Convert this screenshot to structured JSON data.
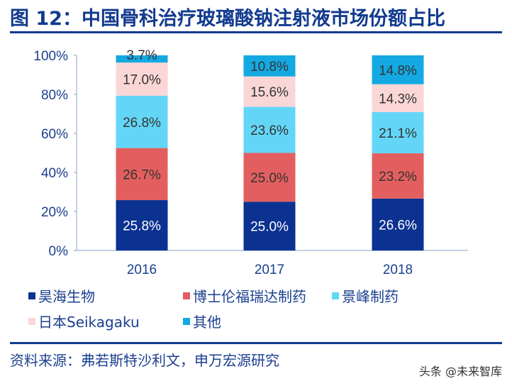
{
  "title": "图 12：中国骨科治疗玻璃酸钠注射液市场份额占比",
  "source": "资料来源：弗若斯特沙利文，申万宏源研究",
  "watermark": "头条 @未来智库",
  "chart_data": {
    "type": "bar",
    "stacked": true,
    "categories": [
      "2016",
      "2017",
      "2018"
    ],
    "ylim": [
      0,
      100
    ],
    "yticks": [
      "0%",
      "20%",
      "40%",
      "60%",
      "80%",
      "100%"
    ],
    "legend_position": "bottom",
    "series": [
      {
        "name": "昊海生物",
        "color": "#0b3191",
        "label_color": "#ffffff",
        "values": [
          25.8,
          25.0,
          26.6
        ],
        "labels": [
          "25.8%",
          "25.0%",
          "26.6%"
        ]
      },
      {
        "name": "博士伦福瑞达制药",
        "color": "#e35f5f",
        "label_color": "#333333",
        "values": [
          26.7,
          25.0,
          23.2
        ],
        "labels": [
          "26.7%",
          "25.0%",
          "23.2%"
        ]
      },
      {
        "name": "景峰制药",
        "color": "#63d6f7",
        "label_color": "#333333",
        "values": [
          26.8,
          23.6,
          21.1
        ],
        "labels": [
          "26.8%",
          "23.6%",
          "21.1%"
        ]
      },
      {
        "name": "日本Seikagaku",
        "color": "#fad6d6",
        "label_color": "#333333",
        "values": [
          17.0,
          15.6,
          14.3
        ],
        "labels": [
          "17.0%",
          "15.6%",
          "14.3%"
        ]
      },
      {
        "name": "其他",
        "color": "#14a9e2",
        "label_color": "#333333",
        "values": [
          3.7,
          10.8,
          14.8
        ],
        "labels": [
          "3.7%",
          "10.8%",
          "14.8%"
        ]
      }
    ]
  }
}
